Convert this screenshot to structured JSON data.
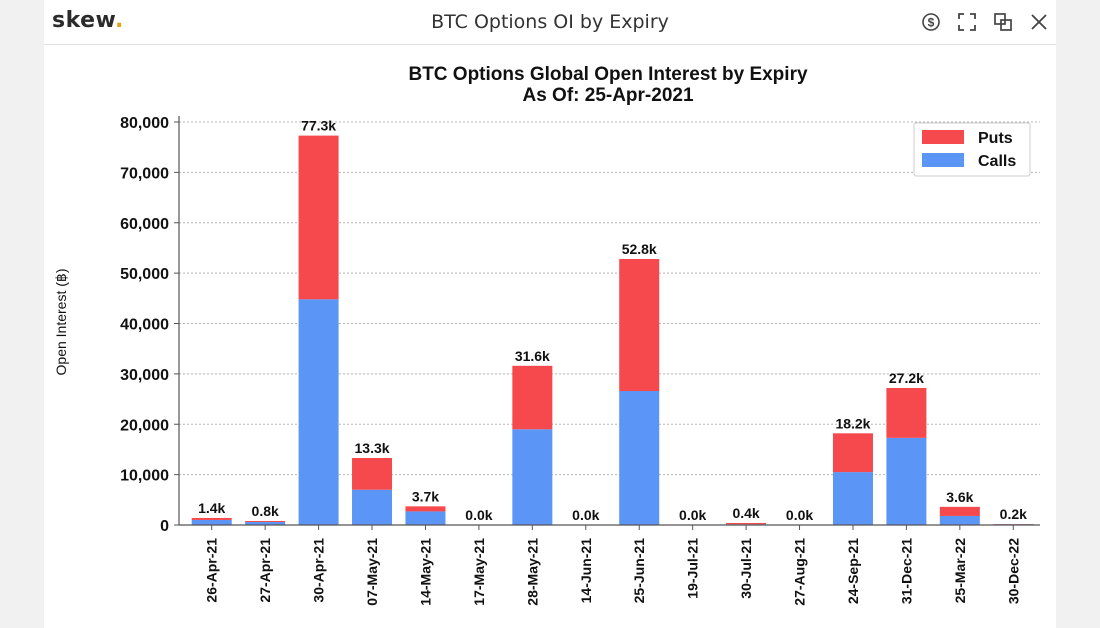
{
  "window": {
    "brand": "skew",
    "brand_dot": ".",
    "title": "BTC Options OI by Expiry",
    "controls": [
      "currency-icon",
      "expand-icon",
      "popout-icon",
      "close-icon"
    ]
  },
  "chart_data": {
    "type": "bar",
    "stacked": true,
    "title": "BTC Options Global Open Interest by Expiry",
    "subtitle": "As Of: 25-Apr-2021",
    "ylabel": "Open Interest (฿)",
    "xlabel": "",
    "ylim": [
      0,
      80000
    ],
    "yticks": [
      0,
      10000,
      20000,
      30000,
      40000,
      50000,
      60000,
      70000,
      80000
    ],
    "ytick_labels": [
      "0",
      "10,000",
      "20,000",
      "30,000",
      "40,000",
      "50,000",
      "60,000",
      "70,000",
      "80,000"
    ],
    "grid": true,
    "legend_position": "top-right",
    "categories": [
      "26-Apr-21",
      "27-Apr-21",
      "30-Apr-21",
      "07-May-21",
      "14-May-21",
      "17-May-21",
      "28-May-21",
      "14-Jun-21",
      "25-Jun-21",
      "19-Jul-21",
      "30-Jul-21",
      "27-Aug-21",
      "24-Sep-21",
      "31-Dec-21",
      "25-Mar-22",
      "30-Dec-22"
    ],
    "series": [
      {
        "name": "Calls",
        "color": "#5b95f5",
        "values": [
          1000,
          600,
          44800,
          7000,
          2700,
          0,
          19000,
          0,
          26600,
          0,
          150,
          0,
          10500,
          17300,
          1800,
          150
        ]
      },
      {
        "name": "Puts",
        "color": "#f5494d",
        "values": [
          400,
          200,
          32500,
          6300,
          1000,
          0,
          12600,
          0,
          26200,
          0,
          250,
          0,
          7700,
          9900,
          1800,
          50
        ]
      }
    ],
    "totals_labels": [
      "1.4k",
      "0.8k",
      "77.3k",
      "13.3k",
      "3.7k",
      "0.0k",
      "31.6k",
      "0.0k",
      "52.8k",
      "0.0k",
      "0.4k",
      "0.0k",
      "18.2k",
      "27.2k",
      "3.6k",
      "0.2k"
    ]
  }
}
